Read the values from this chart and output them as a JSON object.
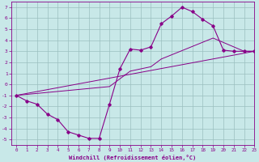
{
  "xlabel": "Windchill (Refroidissement éolien,°C)",
  "xlim": [
    -0.5,
    23
  ],
  "ylim": [
    -5.5,
    7.5
  ],
  "xticks": [
    0,
    1,
    2,
    3,
    4,
    5,
    6,
    7,
    8,
    9,
    10,
    11,
    12,
    13,
    14,
    15,
    16,
    17,
    18,
    19,
    20,
    21,
    22,
    23
  ],
  "yticks": [
    -5,
    -4,
    -3,
    -2,
    -1,
    0,
    1,
    2,
    3,
    4,
    5,
    6,
    7
  ],
  "bg_color": "#c8e8e8",
  "line_color": "#880088",
  "grid_color": "#9bbfbf",
  "line1_x": [
    0,
    1,
    2,
    3,
    4,
    5,
    6,
    7,
    8,
    9,
    10,
    11,
    12,
    13,
    14,
    15,
    16,
    17,
    18,
    19,
    20,
    21,
    22,
    23
  ],
  "line1_y": [
    -1.0,
    -1.5,
    -1.8,
    -2.7,
    -3.2,
    -4.3,
    -4.6,
    -4.9,
    -4.9,
    -1.8,
    1.4,
    3.2,
    3.1,
    3.4,
    5.5,
    6.2,
    7.0,
    6.6,
    5.9,
    5.3,
    3.1,
    3.0,
    3.0,
    3.0
  ],
  "line2_x": [
    0,
    9,
    11,
    12,
    13,
    14,
    19,
    22,
    23
  ],
  "line2_y": [
    -1.0,
    -0.2,
    1.2,
    1.4,
    1.6,
    2.3,
    4.2,
    3.0,
    3.0
  ],
  "line3_x": [
    0,
    23
  ],
  "line3_y": [
    -1.0,
    3.0
  ],
  "figsize": [
    3.2,
    2.0
  ],
  "dpi": 100
}
